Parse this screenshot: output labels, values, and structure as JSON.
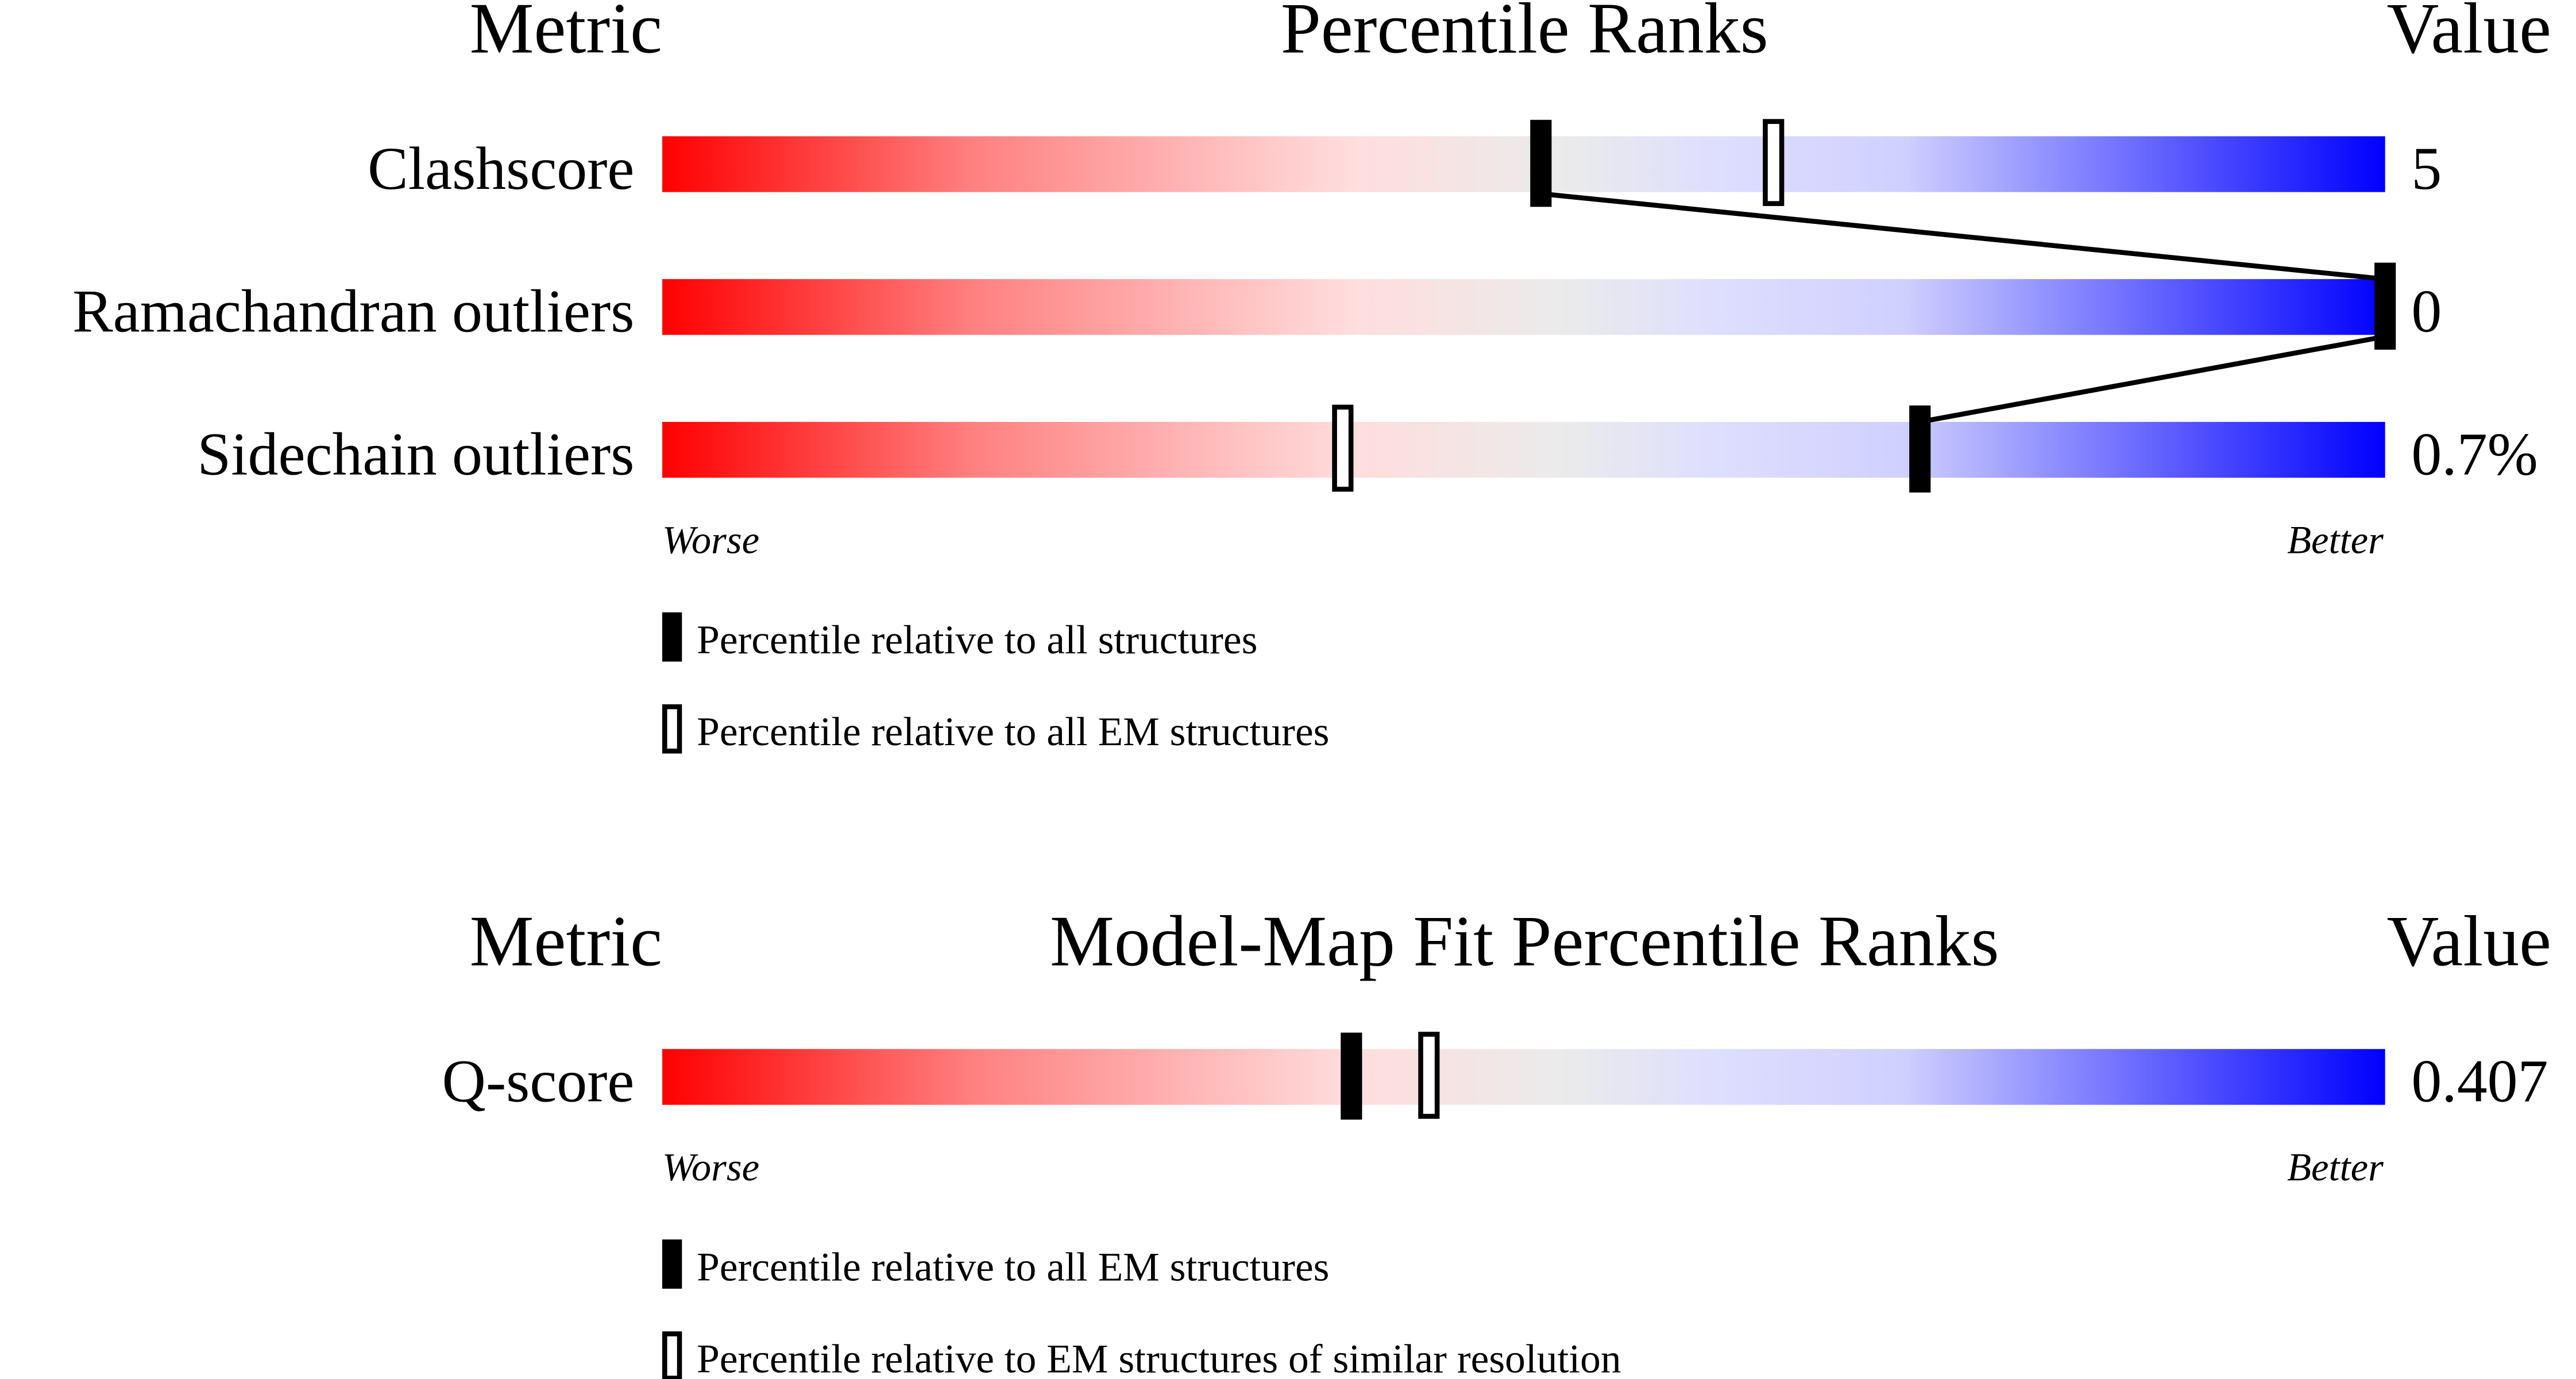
{
  "chart_data": [
    {
      "type": "percentile-rank-bars",
      "headers": {
        "metric": "Metric",
        "title": "Percentile Ranks",
        "value": "Value"
      },
      "axis": {
        "left": "Worse",
        "right": "Better"
      },
      "xlim": [
        0,
        100
      ],
      "metrics": [
        {
          "name": "Clashscore",
          "value": "5",
          "percentile_all": 51,
          "percentile_em": 64.5
        },
        {
          "name": "Ramachandran outliers",
          "value": "0",
          "percentile_all": 100,
          "percentile_em": null
        },
        {
          "name": "Sidechain outliers",
          "value": "0.7%",
          "percentile_all": 73,
          "percentile_em": 39.5
        }
      ],
      "legend": [
        {
          "marker": "filled",
          "label": "Percentile relative to all structures"
        },
        {
          "marker": "hollow",
          "label": "Percentile relative to all EM structures"
        }
      ],
      "connect_filled_markers": true
    },
    {
      "type": "percentile-rank-bars",
      "headers": {
        "metric": "Metric",
        "title": "Model-Map Fit Percentile Ranks",
        "value": "Value"
      },
      "axis": {
        "left": "Worse",
        "right": "Better"
      },
      "xlim": [
        0,
        100
      ],
      "metrics": [
        {
          "name": "Q-score",
          "value": "0.407",
          "percentile_all": 40,
          "percentile_em": 44.5
        }
      ],
      "legend": [
        {
          "marker": "filled",
          "label": "Percentile relative to all EM structures"
        },
        {
          "marker": "hollow",
          "label": "Percentile relative to EM structures of similar resolution"
        }
      ],
      "connect_filled_markers": false
    }
  ],
  "colors": {
    "worse": "#ff0000",
    "middle": "#ebebeb",
    "better": "#0000ff"
  }
}
